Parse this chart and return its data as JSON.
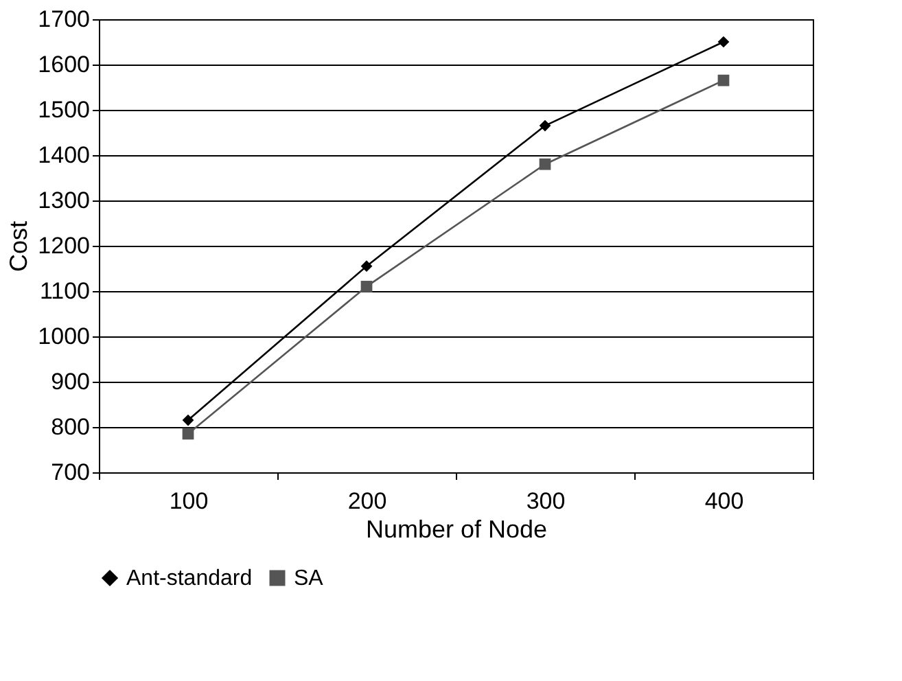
{
  "chart_data": {
    "type": "line",
    "xlabel": "Number of Node",
    "ylabel": "Cost",
    "categories": [
      "100",
      "200",
      "300",
      "400"
    ],
    "ylim": [
      700,
      1700
    ],
    "yticks": [
      700,
      800,
      900,
      1000,
      1100,
      1200,
      1300,
      1400,
      1500,
      1600,
      1700
    ],
    "grid": "y",
    "legend": "bottom",
    "series": [
      {
        "name": "Ant-standard",
        "color": "#000000",
        "marker": "diamond",
        "values": [
          815,
          1155,
          1465,
          1650
        ]
      },
      {
        "name": "SA",
        "color": "#555555",
        "marker": "square",
        "values": [
          785,
          1110,
          1380,
          1565
        ]
      }
    ]
  }
}
